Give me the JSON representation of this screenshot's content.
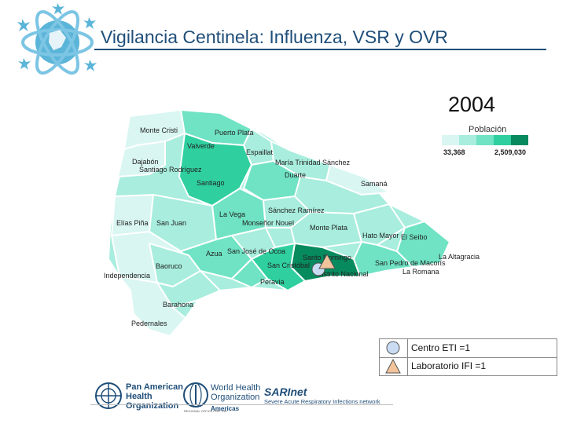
{
  "header": {
    "title": "Vigilancia Centinela: Influenza, VSR y OVR",
    "year": "2004"
  },
  "legend": {
    "title": "Población",
    "min_label": "33,368",
    "max_label": "2,509,030",
    "colors": [
      "#d9f6f2",
      "#a8eddd",
      "#6fe3c4",
      "#2fcf9f",
      "#078a5e"
    ]
  },
  "provinces": [
    "Monte Cristi",
    "Puerto Plata",
    "Valverde",
    "Espaillat",
    "Dajabón",
    "Santiago Rodríguez",
    "Santiago",
    "María Trinidad Sánchez",
    "Duarte",
    "Samaná",
    "Elías Piña",
    "San Juan",
    "La Vega",
    "Sánchez Ramírez",
    "Monseñor Nouel",
    "Monte Plata",
    "Hato Mayor",
    "El Seibo",
    "Azua",
    "San José de Ocoa",
    "Santo Domingo",
    "San Pedro de Macorís",
    "La Altagracia",
    "La Romana",
    "Independencia",
    "Baoruco",
    "San Cristóbal",
    "Distrito Nacional",
    "Peravia",
    "Barahona",
    "Pedernales"
  ],
  "symbols": {
    "eti_label": "Centro ETI =1",
    "lab_label": "Laboratorio IFI =1"
  },
  "footer": {
    "paho_line1": "Pan American",
    "paho_line2": "Health",
    "paho_line3": "Organization",
    "who_line1": "World Health",
    "who_line2": "Organization",
    "who_region": "Americas",
    "who_regional_office": "REGIONAL OFFICE FOR THE",
    "sarinet_logo": "SARInet",
    "sarinet_sub": "Severe Acute Respiratory Infections network"
  }
}
